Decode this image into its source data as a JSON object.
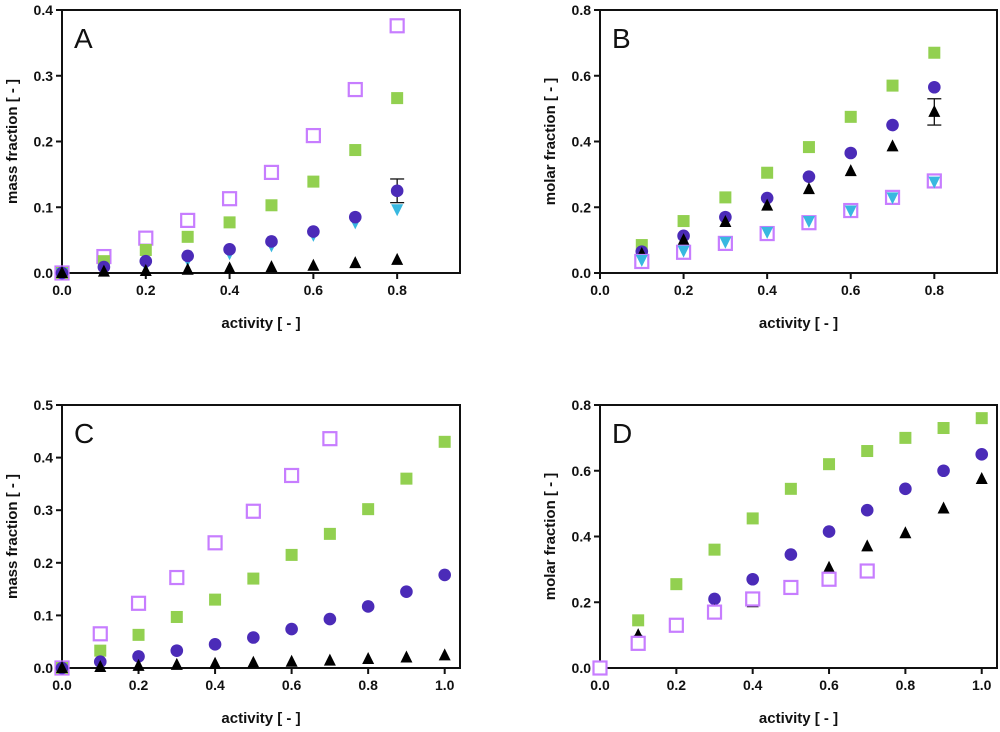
{
  "colors": {
    "green": "#92d050",
    "indigo": "#4b2bb8",
    "black": "#000000",
    "cyan": "#38b8e0",
    "violet": "#c77dff"
  },
  "chart_data": [
    {
      "type": "scatter",
      "panel": "A",
      "xlabel": "activity [ - ]",
      "ylabel": "mass fraction [ - ]",
      "xlim": [
        0,
        0.95
      ],
      "ylim": [
        0,
        0.4
      ],
      "xticks": [
        "0.0",
        "0.2",
        "0.4",
        "0.6",
        "0.8"
      ],
      "yticks": [
        "0.0",
        "0.1",
        "0.2",
        "0.3",
        "0.4"
      ],
      "series": [
        {
          "marker": "open-square",
          "color": "violet",
          "x": [
            0,
            0.1,
            0.2,
            0.3,
            0.4,
            0.5,
            0.6,
            0.7,
            0.8
          ],
          "y": [
            0,
            0.025,
            0.053,
            0.08,
            0.113,
            0.153,
            0.209,
            0.279,
            0.376
          ]
        },
        {
          "marker": "filled-square",
          "color": "green",
          "x": [
            0,
            0.1,
            0.2,
            0.3,
            0.4,
            0.5,
            0.6,
            0.7,
            0.8
          ],
          "y": [
            0,
            0.018,
            0.035,
            0.055,
            0.077,
            0.103,
            0.139,
            0.187,
            0.266
          ]
        },
        {
          "marker": "down-triangle",
          "color": "cyan",
          "x": [
            0,
            0.1,
            0.2,
            0.3,
            0.4,
            0.5,
            0.6,
            0.7,
            0.8
          ],
          "y": [
            0,
            0.006,
            0.012,
            0.02,
            0.03,
            0.042,
            0.058,
            0.077,
            0.097
          ]
        },
        {
          "marker": "circle",
          "color": "indigo",
          "x": [
            0,
            0.1,
            0.2,
            0.3,
            0.4,
            0.5,
            0.6,
            0.7,
            0.8
          ],
          "y": [
            0,
            0.009,
            0.018,
            0.026,
            0.036,
            0.048,
            0.063,
            0.085,
            0.125
          ],
          "err": [
            0,
            0,
            0,
            0,
            0,
            0,
            0,
            0,
            0.018
          ]
        },
        {
          "marker": "triangle",
          "color": "black",
          "x": [
            0,
            0.1,
            0.2,
            0.3,
            0.4,
            0.5,
            0.6,
            0.7,
            0.8
          ],
          "y": [
            0,
            0.002,
            0.003,
            0.005,
            0.007,
            0.009,
            0.011,
            0.015,
            0.02
          ]
        }
      ]
    },
    {
      "type": "scatter",
      "panel": "B",
      "xlabel": "activity [ - ]",
      "ylabel": "molar fraction [ - ]",
      "xlim": [
        0,
        0.95
      ],
      "ylim": [
        0,
        0.8
      ],
      "xticks": [
        "0.0",
        "0.2",
        "0.4",
        "0.6",
        "0.8"
      ],
      "yticks": [
        "0.0",
        "0.2",
        "0.4",
        "0.6",
        "0.8"
      ],
      "series": [
        {
          "marker": "filled-square",
          "color": "green",
          "x": [
            0.1,
            0.2,
            0.3,
            0.4,
            0.5,
            0.6,
            0.7,
            0.8
          ],
          "y": [
            0.085,
            0.158,
            0.23,
            0.305,
            0.383,
            0.475,
            0.57,
            0.67
          ]
        },
        {
          "marker": "circle",
          "color": "indigo",
          "x": [
            0.1,
            0.2,
            0.3,
            0.4,
            0.5,
            0.6,
            0.7,
            0.8
          ],
          "y": [
            0.065,
            0.113,
            0.17,
            0.228,
            0.293,
            0.365,
            0.45,
            0.565
          ]
        },
        {
          "marker": "triangle",
          "color": "black",
          "x": [
            0.1,
            0.2,
            0.3,
            0.4,
            0.5,
            0.6,
            0.7,
            0.8
          ],
          "y": [
            0.058,
            0.1,
            0.155,
            0.205,
            0.255,
            0.31,
            0.385,
            0.49
          ],
          "err": [
            0,
            0,
            0,
            0,
            0,
            0,
            0,
            0.04
          ]
        },
        {
          "marker": "open-square",
          "color": "violet",
          "x": [
            0.1,
            0.2,
            0.3,
            0.4,
            0.5,
            0.6,
            0.7,
            0.8
          ],
          "y": [
            0.035,
            0.063,
            0.09,
            0.12,
            0.153,
            0.19,
            0.23,
            0.28
          ]
        },
        {
          "marker": "down-triangle",
          "color": "cyan",
          "x": [
            0.1,
            0.2,
            0.3,
            0.4,
            0.5,
            0.6,
            0.7,
            0.8
          ],
          "y": [
            0.04,
            0.068,
            0.095,
            0.125,
            0.158,
            0.19,
            0.23,
            0.278
          ]
        }
      ]
    },
    {
      "type": "scatter",
      "panel": "C",
      "xlabel": "activity [ - ]",
      "ylabel": "mass fraction [ - ]",
      "xlim": [
        0,
        1.04
      ],
      "ylim": [
        0,
        0.5
      ],
      "xticks": [
        "0.0",
        "0.2",
        "0.4",
        "0.6",
        "0.8",
        "1.0"
      ],
      "yticks": [
        "0.0",
        "0.1",
        "0.2",
        "0.3",
        "0.4",
        "0.5"
      ],
      "series": [
        {
          "marker": "open-square",
          "color": "violet",
          "x": [
            0,
            0.1,
            0.2,
            0.3,
            0.4,
            0.5,
            0.6,
            0.7
          ],
          "y": [
            0,
            0.065,
            0.123,
            0.172,
            0.238,
            0.298,
            0.366,
            0.436
          ]
        },
        {
          "marker": "filled-square",
          "color": "green",
          "x": [
            0,
            0.1,
            0.2,
            0.3,
            0.4,
            0.5,
            0.6,
            0.7,
            0.8,
            0.9,
            1.0
          ],
          "y": [
            0,
            0.033,
            0.063,
            0.097,
            0.13,
            0.17,
            0.215,
            0.255,
            0.302,
            0.36,
            0.43
          ]
        },
        {
          "marker": "circle",
          "color": "indigo",
          "x": [
            0,
            0.1,
            0.2,
            0.3,
            0.4,
            0.5,
            0.6,
            0.7,
            0.8,
            0.9,
            1.0
          ],
          "y": [
            0,
            0.012,
            0.022,
            0.033,
            0.045,
            0.058,
            0.074,
            0.093,
            0.117,
            0.145,
            0.177
          ]
        },
        {
          "marker": "triangle",
          "color": "black",
          "x": [
            0,
            0.1,
            0.2,
            0.3,
            0.4,
            0.5,
            0.6,
            0.7,
            0.8,
            0.9,
            1.0
          ],
          "y": [
            0,
            0.002,
            0.004,
            0.006,
            0.008,
            0.01,
            0.012,
            0.014,
            0.017,
            0.02,
            0.024
          ]
        }
      ]
    },
    {
      "type": "scatter",
      "panel": "D",
      "xlabel": "activity [ - ]",
      "ylabel": "molar fraction [ - ]",
      "xlim": [
        0,
        1.04
      ],
      "ylim": [
        0,
        0.8
      ],
      "xticks": [
        "0.0",
        "0.2",
        "0.4",
        "0.6",
        "0.8",
        "1.0"
      ],
      "yticks": [
        "0.0",
        "0.2",
        "0.4",
        "0.6",
        "0.8"
      ],
      "series": [
        {
          "marker": "filled-square",
          "color": "green",
          "x": [
            0,
            0.1,
            0.2,
            0.3,
            0.4,
            0.5,
            0.6,
            0.7,
            0.8,
            0.9,
            1.0
          ],
          "y": [
            0,
            0.145,
            0.255,
            0.36,
            0.455,
            0.545,
            0.62,
            0.66,
            0.7,
            0.73,
            0.76
          ]
        },
        {
          "marker": "circle",
          "color": "indigo",
          "x": [
            0,
            0.1,
            0.2,
            0.3,
            0.4,
            0.5,
            0.6,
            0.7,
            0.8,
            0.9,
            1.0
          ],
          "y": [
            0,
            0.085,
            0.13,
            0.21,
            0.27,
            0.345,
            0.415,
            0.48,
            0.545,
            0.6,
            0.65
          ]
        },
        {
          "marker": "triangle",
          "color": "black",
          "x": [
            0,
            0.1,
            0.2,
            0.3,
            0.4,
            0.5,
            0.6,
            0.7,
            0.8,
            0.9,
            1.0
          ],
          "y": [
            0,
            0.1,
            0.125,
            0.175,
            0.2,
            0.245,
            0.305,
            0.37,
            0.41,
            0.485,
            0.575
          ]
        },
        {
          "marker": "open-square",
          "color": "violet",
          "x": [
            0,
            0.1,
            0.2,
            0.3,
            0.4,
            0.5,
            0.6,
            0.7
          ],
          "y": [
            0,
            0.075,
            0.13,
            0.17,
            0.21,
            0.245,
            0.27,
            0.295
          ]
        }
      ]
    }
  ]
}
